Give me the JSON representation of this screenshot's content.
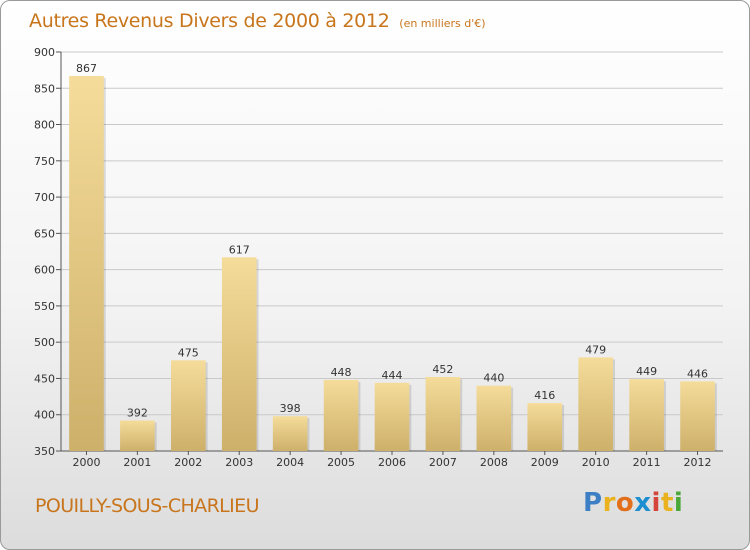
{
  "header": {
    "title": "Autres Revenus Divers de 2000 à 2012",
    "unit": "(en milliers d'€)"
  },
  "footer": {
    "commune": "POUILLY-SOUS-CHARLIEU",
    "logo_letters": [
      "P",
      "r",
      "o",
      "x",
      "i",
      "t",
      "i"
    ],
    "logo_colors": [
      "#3d7fc4",
      "#e9b21e",
      "#e26f1c",
      "#1d8fd0",
      "#d5443a",
      "#e9b21e",
      "#4aa83a"
    ]
  },
  "chart_data": {
    "type": "bar",
    "title": "Autres Revenus Divers de 2000 à 2012",
    "subtitle": "(en milliers d'€)",
    "xlabel": "",
    "ylabel": "",
    "categories": [
      "2000",
      "2001",
      "2002",
      "2003",
      "2004",
      "2005",
      "2006",
      "2007",
      "2008",
      "2009",
      "2010",
      "2011",
      "2012"
    ],
    "values": [
      867,
      392,
      475,
      617,
      398,
      448,
      444,
      452,
      440,
      416,
      479,
      449,
      446
    ],
    "ylim": [
      350,
      900
    ],
    "yticks": [
      350,
      400,
      450,
      500,
      550,
      600,
      650,
      700,
      750,
      800,
      850,
      900
    ],
    "grid": true,
    "bar_color_top": "#f5dc9a",
    "bar_color_bottom": "#cdb06a",
    "grid_color": "#c9c9c9"
  }
}
